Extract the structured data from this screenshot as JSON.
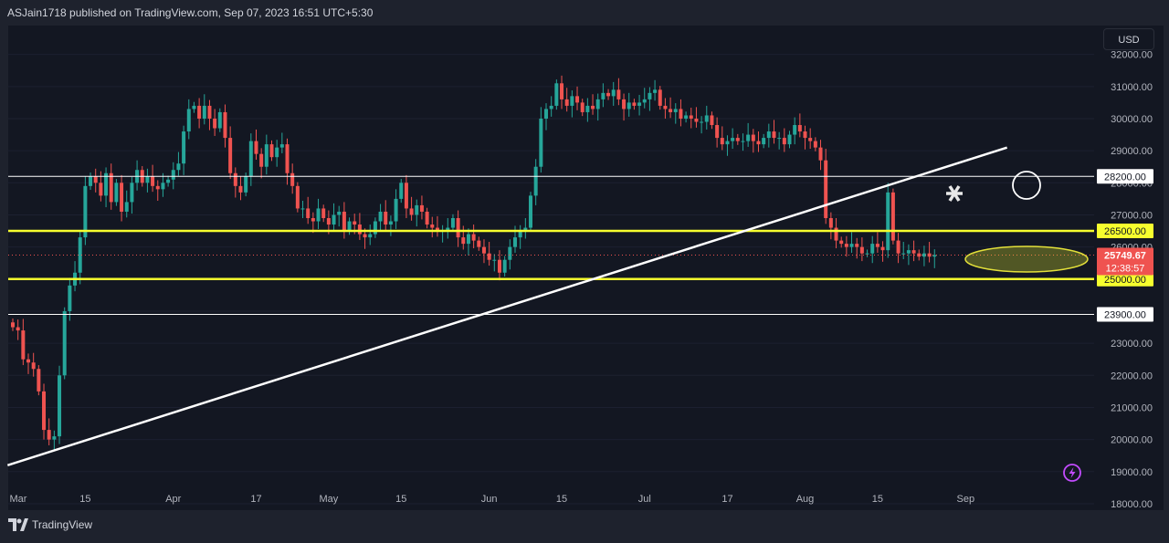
{
  "header": {
    "published": "ASJain1718 published on TradingView.com, Sep 07, 2023 16:51 UTC+5:30"
  },
  "footer": {
    "brand": "TradingView"
  },
  "currency": "USD",
  "colors": {
    "up": "#26a69a",
    "down": "#ef5350",
    "level": "#f6ff2e",
    "line": "#ffffff",
    "bg": "#131722"
  },
  "chart_data": {
    "type": "candlestick",
    "yticks": [
      18000,
      19000,
      20000,
      21000,
      22000,
      23000,
      24000,
      25000,
      26000,
      27000,
      28000,
      29000,
      30000,
      31000,
      32000
    ],
    "ytick_labels": [
      "18000.00",
      "19000.00",
      "20000.00",
      "21000.00",
      "22000.00",
      "23000.00",
      "24000.00",
      "25000.00",
      "26000.00",
      "27000.00",
      "28000.00",
      "29000.00",
      "30000.00",
      "31000.00",
      "32000.00"
    ],
    "ylim": [
      17800,
      32900
    ],
    "xlabels": [
      {
        "label": "Mar",
        "day": 0
      },
      {
        "label": "15",
        "day": 14
      },
      {
        "label": "Apr",
        "day": 31
      },
      {
        "label": "17",
        "day": 47
      },
      {
        "label": "May",
        "day": 61
      },
      {
        "label": "15",
        "day": 75
      },
      {
        "label": "Jun",
        "day": 92
      },
      {
        "label": "15",
        "day": 106
      },
      {
        "label": "Jul",
        "day": 122
      },
      {
        "label": "17",
        "day": 138
      },
      {
        "label": "Aug",
        "day": 153
      },
      {
        "label": "15",
        "day": 167
      },
      {
        "label": "Sep",
        "day": 184
      }
    ],
    "levels": [
      {
        "price": 28200,
        "label": "28200.00",
        "style": "white"
      },
      {
        "price": 26500,
        "label": "26500.00",
        "style": "yellow"
      },
      {
        "price": 25000,
        "label": "25000.00",
        "style": "yellow"
      },
      {
        "price": 23900,
        "label": "23900.00",
        "style": "white"
      }
    ],
    "last_price": {
      "price": 25749.67,
      "label": "25749.67",
      "countdown": "12:38:57"
    },
    "trendline": {
      "from": {
        "day": -1,
        "price": 19200
      },
      "to": {
        "day": 192,
        "price": 29100
      }
    },
    "closes": [
      23500,
      23400,
      22500,
      22400,
      22200,
      21500,
      20300,
      20000,
      20100,
      22000,
      24000,
      24800,
      25200,
      26300,
      27900,
      28200,
      28000,
      27600,
      28300,
      27400,
      28000,
      27100,
      27400,
      28000,
      28400,
      28000,
      28200,
      27900,
      27800,
      28000,
      28100,
      28400,
      28600,
      29600,
      30300,
      30400,
      30000,
      30400,
      30000,
      29700,
      30200,
      29400,
      28300,
      27900,
      27700,
      28200,
      29300,
      28900,
      28500,
      29200,
      28800,
      29100,
      29200,
      28300,
      27900,
      27200,
      27200,
      26900,
      26800,
      27200,
      26900,
      26700,
      27000,
      27100,
      26500,
      26800,
      26700,
      26400,
      26300,
      26400,
      26800,
      27100,
      26700,
      26800,
      27500,
      28000,
      27200,
      27000,
      27300,
      27100,
      26700,
      26600,
      26500,
      26500,
      26600,
      26900,
      26300,
      26100,
      26400,
      26200,
      26000,
      25800,
      25600,
      25600,
      25200,
      25600,
      26000,
      26300,
      26500,
      26600,
      27600,
      28500,
      30000,
      30300,
      30400,
      31100,
      30600,
      30400,
      30700,
      30500,
      30200,
      30400,
      30300,
      30600,
      30800,
      30700,
      30900,
      30600,
      30300,
      30500,
      30400,
      30500,
      30600,
      30800,
      30900,
      30400,
      30300,
      30200,
      30300,
      30000,
      30100,
      30000,
      29900,
      29900,
      30100,
      29800,
      29400,
      29200,
      29300,
      29400,
      29300,
      29300,
      29500,
      29300,
      29200,
      29400,
      29600,
      29400,
      29400,
      29200,
      29500,
      29800,
      29600,
      29400,
      29300,
      29100,
      28700,
      26900,
      26600,
      26200,
      26100,
      26000,
      26100,
      26000,
      25800,
      25800,
      26100,
      26000,
      25900,
      27700,
      26200,
      25800,
      25800,
      25900,
      25800,
      25700,
      25800,
      25700,
      25749
    ]
  }
}
